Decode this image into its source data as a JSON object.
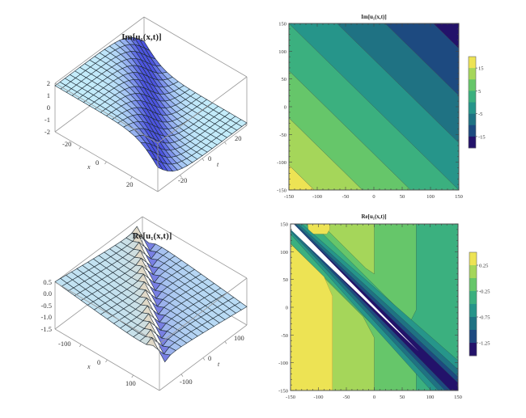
{
  "chart_data": [
    {
      "type": "surface3d",
      "title": "Im[u₁(x,t)]",
      "xlabel": "x",
      "ylabel": "t",
      "x_ticks": [
        "-20",
        "0",
        "20"
      ],
      "t_ticks": [
        "-20",
        "0",
        "20"
      ],
      "z_ticks": [
        "2",
        "1",
        "0",
        "-1",
        "-2"
      ],
      "xlim": [
        -30,
        30
      ],
      "tlim": [
        -30,
        30
      ],
      "zlim": [
        -2,
        2
      ],
      "colors": {
        "flat": "#c4ecfa",
        "steep": "#4d55e0"
      }
    },
    {
      "type": "contour",
      "title": "Im[u₁(x,t)]",
      "x_ticks": [
        "-150",
        "-100",
        "-50",
        "0",
        "50",
        "100",
        "150"
      ],
      "y_ticks": [
        "150",
        "100",
        "50",
        "0",
        "-50",
        "-100",
        "-150"
      ],
      "xlim": [
        -150,
        150
      ],
      "ylim": [
        -150,
        150
      ],
      "levels": [
        20,
        15,
        10,
        5,
        0,
        -5,
        -10,
        -15,
        -20
      ],
      "colorbar_ticks": [
        "15",
        "5",
        "-5",
        "-15"
      ],
      "colorbar_tick_values": [
        15,
        5,
        -5,
        -15
      ],
      "band_colors": [
        "#ede354",
        "#a5d65a",
        "#66c66a",
        "#3bb07f",
        "#26958a",
        "#1f7283",
        "#1d4a80",
        "#23126a"
      ]
    },
    {
      "type": "surface3d",
      "title": "Re[u₁(x,t)]",
      "xlabel": "x",
      "ylabel": "t",
      "x_ticks": [
        "-100",
        "0",
        "100"
      ],
      "t_ticks": [
        "-100",
        "0",
        "100"
      ],
      "z_ticks": [
        "0.5",
        "0.0",
        "-0.5",
        "-1.0",
        "-1.5"
      ],
      "xlim": [
        -150,
        150
      ],
      "tlim": [
        -150,
        150
      ],
      "zlim": [
        -1.5,
        0.5
      ],
      "colors": {
        "flat": "#bfe3f6",
        "ridge": "#f2d4ae",
        "valley": "#5046d8"
      }
    },
    {
      "type": "contour",
      "title": "Re[u₁(x,t)]",
      "x_ticks": [
        "-150",
        "-100",
        "-50",
        "0",
        "50",
        "100",
        "150"
      ],
      "y_ticks": [
        "150",
        "100",
        "50",
        "0",
        "-50",
        "-100",
        "-150"
      ],
      "xlim": [
        -150,
        150
      ],
      "ylim": [
        -150,
        150
      ],
      "levels": [
        0.5,
        0.25,
        0,
        -0.25,
        -0.5,
        -0.75,
        -1,
        -1.25,
        -1.5
      ],
      "colorbar_ticks": [
        "0.25",
        "-0.25",
        "-0.75",
        "-1.25"
      ],
      "colorbar_tick_values": [
        0.25,
        -0.25,
        -0.75,
        -1.25
      ],
      "band_colors": [
        "#ede354",
        "#a5d65a",
        "#66c66a",
        "#3bb07f",
        "#26958a",
        "#1f7283",
        "#1d4a80",
        "#23126a"
      ]
    }
  ]
}
